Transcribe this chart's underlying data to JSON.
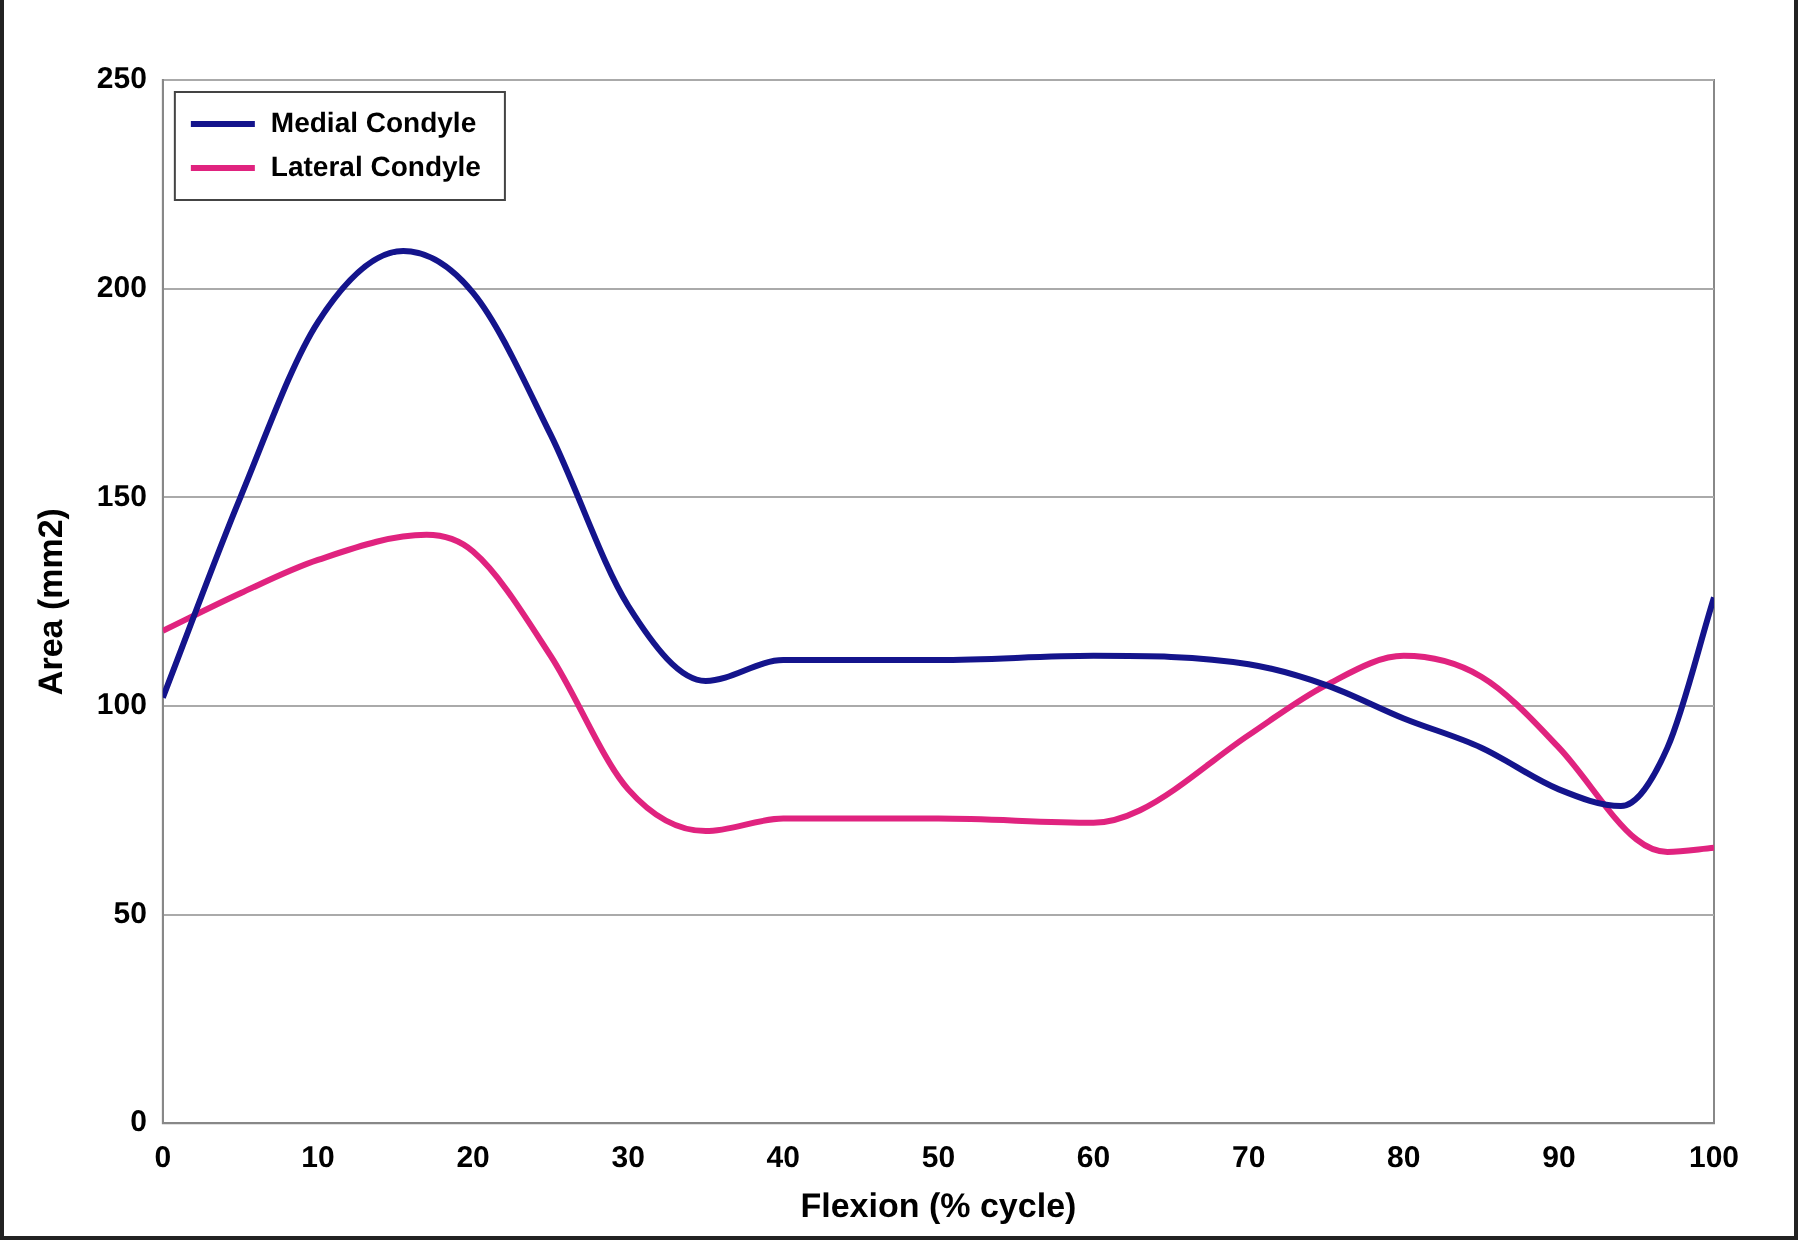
{
  "chart_data": {
    "type": "line",
    "xlabel": "Flexion (% cycle)",
    "ylabel": "Area (mm2)",
    "xlim": [
      0,
      100
    ],
    "xticks": [
      0,
      10,
      20,
      30,
      40,
      50,
      60,
      70,
      80,
      90,
      100
    ],
    "ylim": [
      0,
      250
    ],
    "yticks": [
      0,
      50,
      100,
      150,
      200,
      250
    ],
    "grid": "y",
    "legend": "top left",
    "marker": "none",
    "line_style": "solid",
    "series": [
      {
        "name": "Medial Condyle",
        "color": "#14148c",
        "x": [
          0,
          5,
          10,
          15.5,
          20,
          25,
          30,
          35,
          40,
          50,
          60,
          70,
          75,
          80,
          85,
          90,
          94,
          97,
          100
        ],
        "values": [
          102,
          150,
          192,
          209,
          199,
          165,
          124,
          106,
          111,
          111,
          112,
          110,
          105,
          97,
          90,
          80,
          76,
          90,
          126
        ]
      },
      {
        "name": "Lateral Condyle",
        "color": "#e0237f",
        "x": [
          0,
          5,
          10,
          17,
          20,
          25,
          30,
          35,
          40,
          50,
          60,
          63,
          70,
          75,
          80,
          85,
          90,
          95,
          97,
          100
        ],
        "values": [
          118,
          127,
          135,
          141,
          137,
          112,
          80,
          70,
          73,
          73,
          72,
          75,
          93,
          105,
          112,
          107,
          90,
          68,
          65,
          66
        ]
      }
    ]
  }
}
